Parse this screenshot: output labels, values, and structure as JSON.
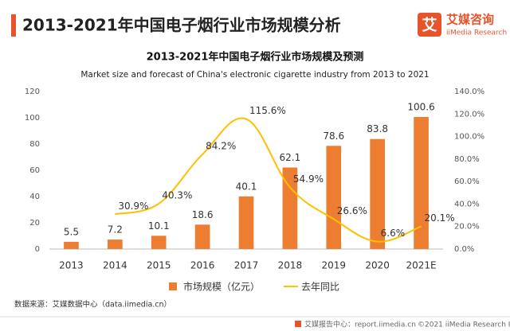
{
  "header": {
    "title": "2013-2021年中国电子烟行业市场规模分析",
    "logo_mark": "艾",
    "logo_main": "艾媒咨询",
    "logo_sub": "iiMedia Research"
  },
  "chart_data": {
    "type": "bar",
    "title": "2013-2021年中国电子烟行业市场规模及预测",
    "subtitle": "Market size and forecast of China's electronic cigarette industry from 2013 to 2021",
    "categories": [
      "2013",
      "2014",
      "2015",
      "2016",
      "2017",
      "2018",
      "2019",
      "2020",
      "2021E"
    ],
    "series": [
      {
        "name": "市场规模（亿元）",
        "type": "bar",
        "color": "#ed7d31",
        "values": [
          5.5,
          7.2,
          10.1,
          18.6,
          40.1,
          62.1,
          78.6,
          83.8,
          100.6
        ]
      },
      {
        "name": "去年同比",
        "type": "line",
        "axis": "y2",
        "color": "#ffc000",
        "values": [
          null,
          30.9,
          40.3,
          84.2,
          115.6,
          54.9,
          26.6,
          6.6,
          20.1
        ],
        "value_labels": [
          null,
          "30.9%",
          "40.3%",
          "84.2%",
          "115.6%",
          "54.9%",
          "26.6%",
          "6.6%",
          "20.1%"
        ]
      }
    ],
    "ylim": [
      0,
      120
    ],
    "yticks": [
      0,
      20,
      40,
      60,
      80,
      100,
      120
    ],
    "y2lim": [
      0,
      140
    ],
    "y2ticks": [
      {
        "value": 0,
        "label": "0.0%"
      },
      {
        "value": 20,
        "label": "20.0%"
      },
      {
        "value": 40,
        "label": "40.0%"
      },
      {
        "value": 60,
        "label": "60.0%"
      },
      {
        "value": 80,
        "label": "80.0%"
      },
      {
        "value": 100,
        "label": "100.0%"
      },
      {
        "value": 120,
        "label": "120.0%"
      },
      {
        "value": 140,
        "label": "140.0%"
      }
    ],
    "grid": false,
    "legend": "bottom"
  },
  "footer": {
    "source": "数据来源：艾媒数据中心（data.iimedia.cn）",
    "site": "艾媒报告中心：report.iimedia.cn",
    "copyright": "©2021  iiMedia Research  Inc"
  }
}
